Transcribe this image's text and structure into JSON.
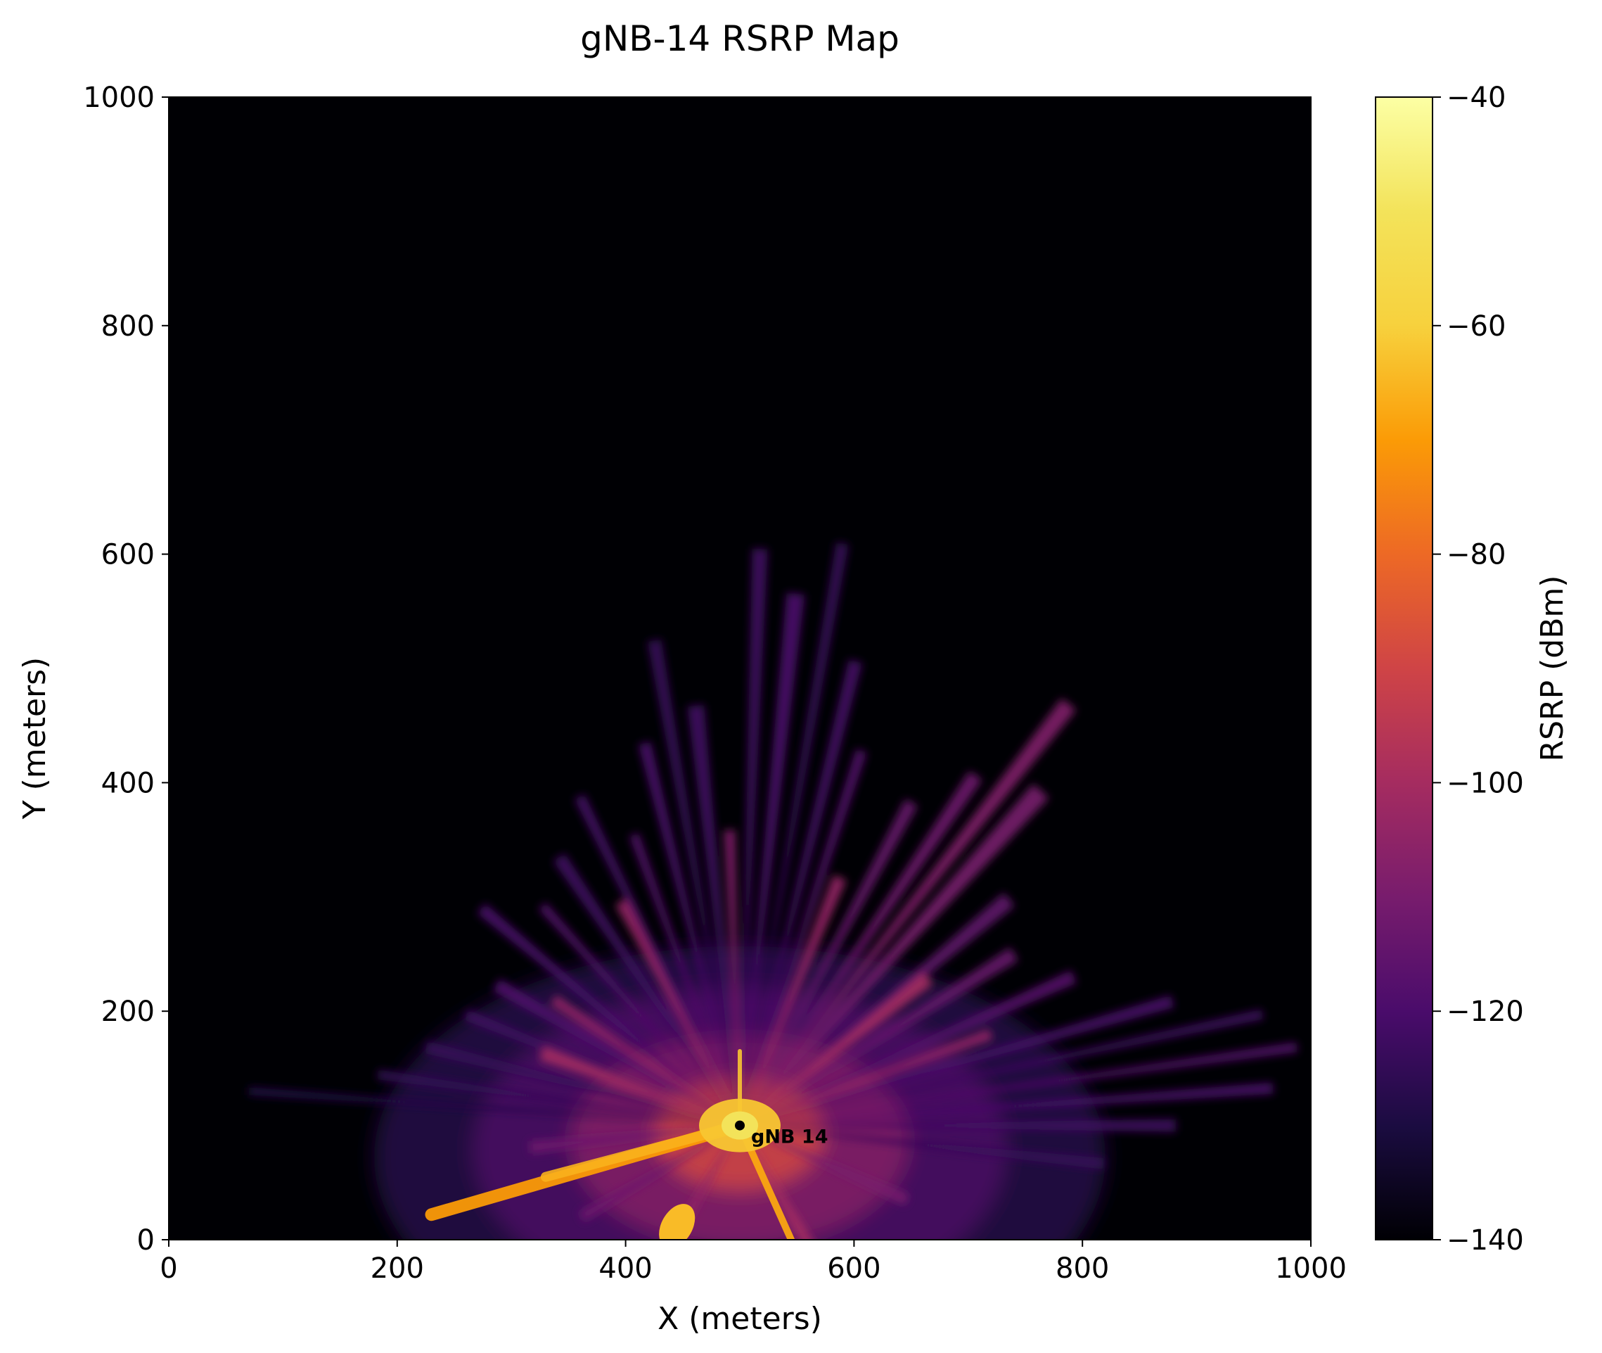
{
  "chart_data": {
    "type": "heatmap",
    "title": "gNB-14 RSRP Map",
    "xlabel": "X (meters)",
    "ylabel": "Y (meters)",
    "xlim": [
      0,
      1000
    ],
    "ylim": [
      0,
      1000
    ],
    "xticks": [
      0,
      200,
      400,
      600,
      800,
      1000
    ],
    "yticks": [
      0,
      200,
      400,
      600,
      800,
      1000
    ],
    "colormap": "inferno",
    "colorbar": {
      "label": "RSRP (dBm)",
      "range": [
        -140,
        -40
      ],
      "ticks": [
        -140,
        -120,
        -100,
        -80,
        -60,
        -40
      ],
      "tick_labels": [
        "−140",
        "−120",
        "−100",
        "−80",
        "−60",
        "−40"
      ]
    },
    "transmitter": {
      "name": "gNB 14",
      "x": 500,
      "y": 100
    },
    "background_rsrp": -140,
    "grid": false
  }
}
